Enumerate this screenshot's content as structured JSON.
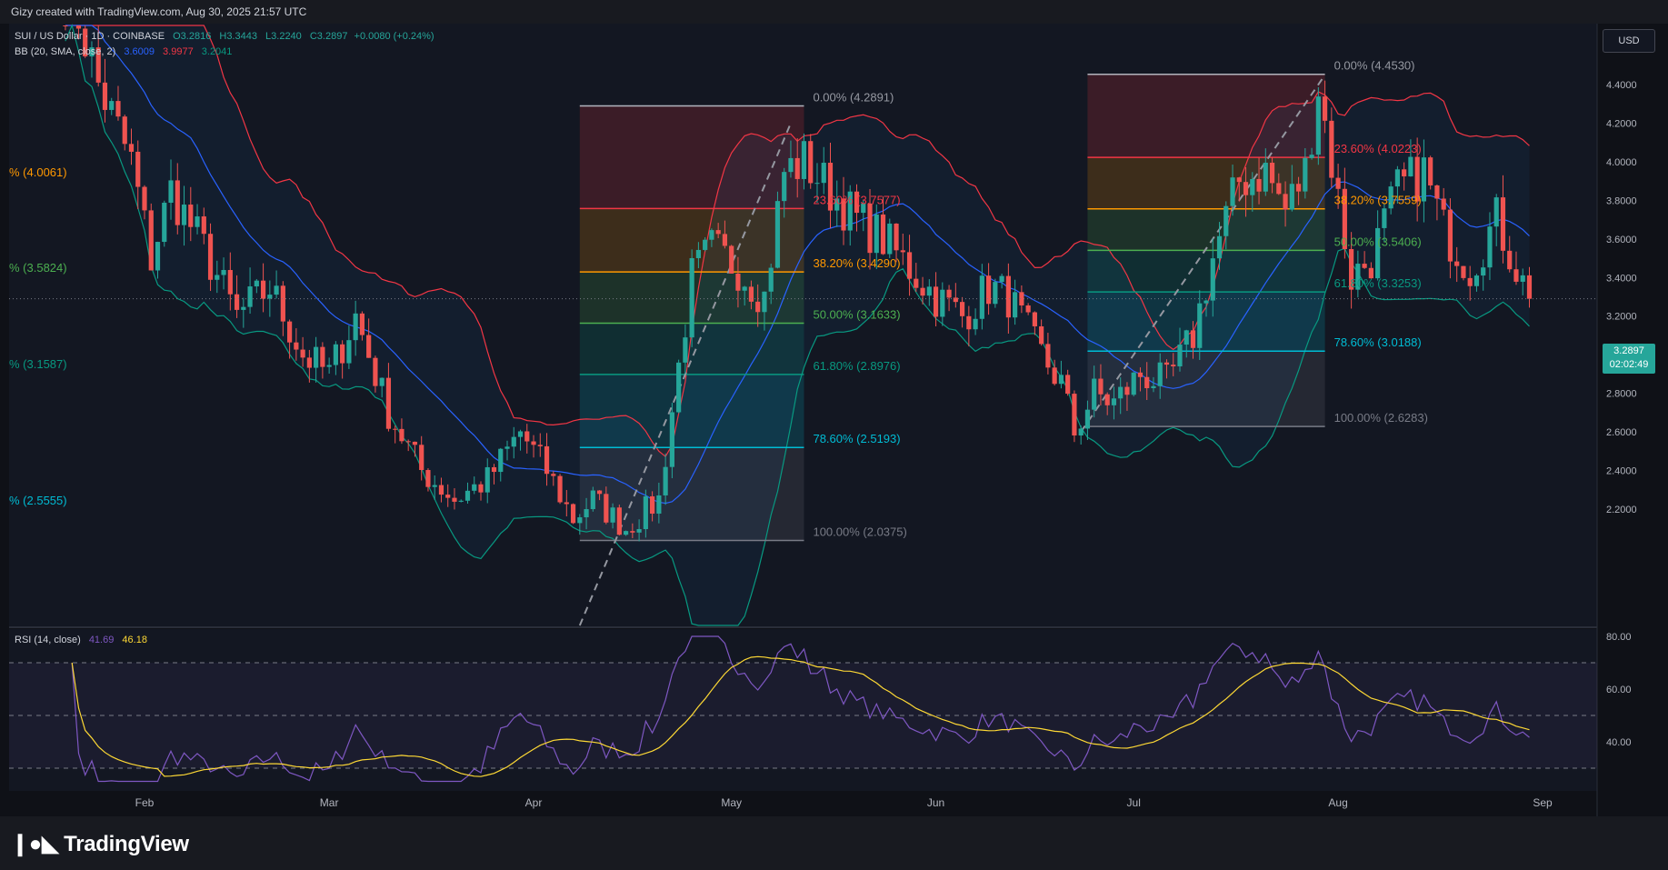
{
  "header": {
    "credit": "Gizy created with TradingView.com, Aug 30, 2025 21:57 UTC"
  },
  "symbol": {
    "name": "SUI / US Dollar · 1D · COINBASE",
    "open": "O3.2816",
    "high": "H3.3443",
    "low": "L3.2240",
    "close": "C3.2897",
    "change": "+0.0080 (+0.24%)"
  },
  "bb": {
    "label": "BB (20, SMA, close, 2)",
    "basis": "3.6009",
    "upper": "3.9977",
    "lower": "3.2041"
  },
  "rsi": {
    "label": "RSI (14, close)",
    "value": "41.69",
    "ma": "46.18"
  },
  "currency": "USD",
  "last_price": {
    "value": "3.2897",
    "countdown": "02:02:49"
  },
  "brand": "TradingView",
  "colors": {
    "up": "#26a69a",
    "down": "#ef5350",
    "bb_basis": "#2962ff",
    "bb_band": "#f23645",
    "bb_lower": "#089981",
    "rsi": "#7e57c2",
    "rsi_ma": "#fdd835"
  },
  "chart_data": {
    "type": "candlestick",
    "y_axis": {
      "ticks": [
        "4.4000",
        "4.2000",
        "4.0000",
        "3.8000",
        "3.6000",
        "3.4000",
        "3.2000",
        "3.0000",
        "2.8000",
        "2.6000",
        "2.4000",
        "2.2000"
      ]
    },
    "rsi_axis": {
      "ticks": [
        "80.00",
        "60.00",
        "40.00"
      ]
    },
    "x_axis": {
      "ticks": [
        "Feb",
        "Mar",
        "Apr",
        "May",
        "Jun",
        "Jul",
        "Aug",
        "Sep"
      ]
    },
    "left_fib_labels": [
      "% (4.0061)",
      "% (3.5824)",
      "% (3.1587)",
      "% (2.5555)"
    ],
    "fib_april": [
      {
        "label": "0.00% (4.2891)",
        "price": 4.2891
      },
      {
        "label": "23.60% (3.7577)",
        "price": 3.7577
      },
      {
        "label": "38.20% (3.4290)",
        "price": 3.429
      },
      {
        "label": "50.00% (3.1633)",
        "price": 3.1633
      },
      {
        "label": "61.80% (2.8976)",
        "price": 2.8976
      },
      {
        "label": "78.60% (2.5193)",
        "price": 2.5193
      },
      {
        "label": "100.00% (2.0375)",
        "price": 2.0375
      }
    ],
    "fib_july": [
      {
        "label": "0.00% (4.4530)",
        "price": 4.453
      },
      {
        "label": "23.60% (4.0223)",
        "price": 4.0223
      },
      {
        "label": "38.20% (3.7559)",
        "price": 3.7559
      },
      {
        "label": "50.00% (3.5406)",
        "price": 3.5406
      },
      {
        "label": "61.80% (3.3253)",
        "price": 3.3253
      },
      {
        "label": "78.60% (3.0188)",
        "price": 3.0188
      },
      {
        "label": "100.00% (2.6283)",
        "price": 2.6283
      }
    ],
    "close_path": [
      [
        "01-20",
        5.0
      ],
      [
        "01-25",
        4.4
      ],
      [
        "01-30",
        4.0
      ],
      [
        "02-02",
        3.5
      ],
      [
        "02-05",
        3.85
      ],
      [
        "02-10",
        3.55
      ],
      [
        "02-15",
        3.2
      ],
      [
        "02-20",
        3.35
      ],
      [
        "02-25",
        3.0
      ],
      [
        "03-01",
        2.9
      ],
      [
        "03-05",
        3.2
      ],
      [
        "03-10",
        2.7
      ],
      [
        "03-15",
        2.4
      ],
      [
        "03-20",
        2.25
      ],
      [
        "03-25",
        2.35
      ],
      [
        "03-30",
        2.6
      ],
      [
        "04-03",
        2.4
      ],
      [
        "04-07",
        2.15
      ],
      [
        "04-10",
        2.25
      ],
      [
        "04-15",
        2.1
      ],
      [
        "04-20",
        2.25
      ],
      [
        "04-25",
        3.4
      ],
      [
        "04-28",
        3.55
      ],
      [
        "05-02",
        3.45
      ],
      [
        "05-06",
        3.3
      ],
      [
        "05-09",
        3.95
      ],
      [
        "05-12",
        4.0
      ],
      [
        "05-16",
        3.85
      ],
      [
        "05-20",
        3.7
      ],
      [
        "05-24",
        3.6
      ],
      [
        "05-28",
        3.45
      ],
      [
        "06-01",
        3.3
      ],
      [
        "06-05",
        3.2
      ],
      [
        "06-09",
        3.35
      ],
      [
        "06-12",
        3.3
      ],
      [
        "06-16",
        3.05
      ],
      [
        "06-20",
        2.85
      ],
      [
        "06-22",
        2.6
      ],
      [
        "06-25",
        2.8
      ],
      [
        "06-28",
        2.75
      ],
      [
        "07-02",
        2.9
      ],
      [
        "07-06",
        2.85
      ],
      [
        "07-10",
        3.1
      ],
      [
        "07-13",
        3.5
      ],
      [
        "07-17",
        3.9
      ],
      [
        "07-21",
        3.95
      ],
      [
        "07-24",
        3.75
      ],
      [
        "07-27",
        3.95
      ],
      [
        "07-29",
        4.4
      ],
      [
        "08-01",
        3.8
      ],
      [
        "08-03",
        3.4
      ],
      [
        "08-06",
        3.5
      ],
      [
        "08-10",
        3.85
      ],
      [
        "08-14",
        3.95
      ],
      [
        "08-17",
        3.65
      ],
      [
        "08-21",
        3.45
      ],
      [
        "08-25",
        3.7
      ],
      [
        "08-28",
        3.45
      ],
      [
        "08-30",
        3.29
      ]
    ]
  }
}
